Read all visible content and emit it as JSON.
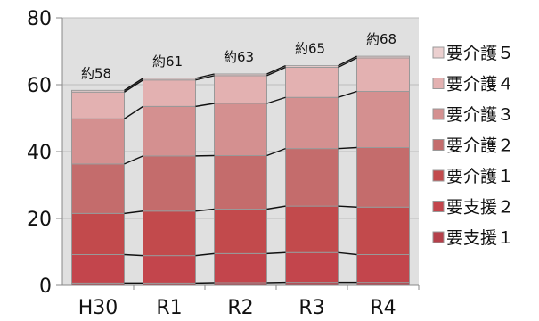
{
  "chart_data": {
    "type": "bar",
    "stacked": true,
    "title": "",
    "xlabel": "",
    "ylabel": "",
    "categories": [
      "H30",
      "R1",
      "R2",
      "R3",
      "R4"
    ],
    "ylim": [
      0,
      80
    ],
    "yticks": [
      0,
      20,
      40,
      60,
      80
    ],
    "grid": true,
    "legend_position": "right",
    "total_labels": [
      "約58",
      "約61",
      "約63",
      "約65",
      "約68"
    ],
    "series": [
      {
        "name": "要支援１",
        "color": "#b5404a",
        "values": [
          0.7,
          0.7,
          0.8,
          0.9,
          0.9
        ]
      },
      {
        "name": "要支援２",
        "color": "#c3454c",
        "values": [
          8.5,
          8.2,
          8.7,
          8.9,
          8.3
        ]
      },
      {
        "name": "要介護１",
        "color": "#c24a4c",
        "values": [
          12.3,
          13.3,
          13.3,
          13.9,
          14.2
        ]
      },
      {
        "name": "要介護２",
        "color": "#c46c6c",
        "values": [
          14.8,
          16.5,
          16.0,
          17.2,
          17.8
        ]
      },
      {
        "name": "要介護３",
        "color": "#d49090",
        "values": [
          13.5,
          14.8,
          15.6,
          15.3,
          16.8
        ]
      },
      {
        "name": "要介護４",
        "color": "#e3b1b1",
        "values": [
          8.0,
          7.9,
          8.3,
          9.0,
          10.0
        ]
      },
      {
        "name": "要介護５",
        "color": "#ecd0d0",
        "values": [
          0.5,
          0.5,
          0.5,
          0.5,
          0.5
        ]
      }
    ],
    "colors": {
      "plot_background": "#e0e0e0",
      "segment_border": "#999999",
      "connector_line": "#111111",
      "gridline": "#bbbbbb",
      "axis": "#888888"
    }
  }
}
